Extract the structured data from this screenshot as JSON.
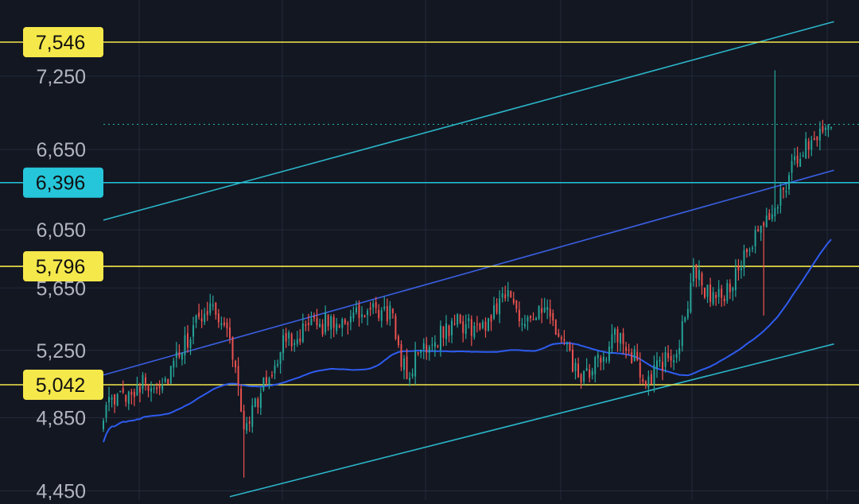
{
  "chart_data": {
    "type": "candlestick",
    "title": "",
    "xlabel": "",
    "ylabel": "",
    "ylim": [
      4450,
      7750
    ],
    "y_scale": "log",
    "grid": true,
    "y_ticks": [
      "4,450",
      "4,850",
      "5,250",
      "5,650",
      "6,050",
      "6,650",
      "7,250"
    ],
    "y_tick_values": [
      4450,
      4850,
      5250,
      5650,
      6050,
      6650,
      7250
    ],
    "price_levels": [
      {
        "label": "7,546",
        "value": 7546,
        "color": "#f5e84a",
        "style": "yellow-label"
      },
      {
        "label": "6,396",
        "value": 6396,
        "color": "#26c6da",
        "style": "cyan-label"
      },
      {
        "label": "5,796",
        "value": 5796,
        "color": "#f5e84a",
        "style": "yellow-label"
      },
      {
        "label": "5,042",
        "value": 5042,
        "color": "#f5e84a",
        "style": "yellow-label"
      }
    ],
    "last_price": 6850,
    "channel_lines": [
      {
        "name": "upper-channel",
        "color": "#2bb5c8",
        "from": {
          "bar": 0,
          "value": 6120
        },
        "to": {
          "bar": 260,
          "value": 7730
        }
      },
      {
        "name": "lower-channel",
        "color": "#2bb5c8",
        "from": {
          "bar": 45,
          "value": 4420
        },
        "to": {
          "bar": 260,
          "value": 5290
        }
      },
      {
        "name": "mid-trendline",
        "color": "#3a5fe0",
        "from": {
          "bar": 0,
          "value": 5100
        },
        "to": {
          "bar": 260,
          "value": 6490
        }
      }
    ],
    "moving_average": {
      "color": "#2e5cf0",
      "length": 50
    },
    "colors": {
      "up": "#26a69a",
      "down": "#ef5350",
      "background": "#131722",
      "grid": "#232a3a",
      "axis_text": "#b2b5be",
      "level_yellow": "#f5e84a",
      "level_cyan": "#26c6da"
    },
    "candles": {
      "count": 260,
      "key_closes": [
        {
          "bar": 0,
          "value": 4890
        },
        {
          "bar": 12,
          "value": 5040
        },
        {
          "bar": 22,
          "value": 5060
        },
        {
          "bar": 32,
          "value": 5380
        },
        {
          "bar": 38,
          "value": 5560
        },
        {
          "bar": 45,
          "value": 5340
        },
        {
          "bar": 50,
          "value": 4800
        },
        {
          "bar": 55,
          "value": 4960
        },
        {
          "bar": 65,
          "value": 5320
        },
        {
          "bar": 80,
          "value": 5430
        },
        {
          "bar": 95,
          "value": 5480
        },
        {
          "bar": 102,
          "value": 5490
        },
        {
          "bar": 108,
          "value": 5080
        },
        {
          "bar": 113,
          "value": 5260
        },
        {
          "bar": 125,
          "value": 5420
        },
        {
          "bar": 135,
          "value": 5380
        },
        {
          "bar": 143,
          "value": 5640
        },
        {
          "bar": 148,
          "value": 5470
        },
        {
          "bar": 158,
          "value": 5480
        },
        {
          "bar": 165,
          "value": 5240
        },
        {
          "bar": 170,
          "value": 5050
        },
        {
          "bar": 175,
          "value": 5150
        },
        {
          "bar": 182,
          "value": 5330
        },
        {
          "bar": 188,
          "value": 5230
        },
        {
          "bar": 193,
          "value": 5060
        },
        {
          "bar": 198,
          "value": 5150
        },
        {
          "bar": 205,
          "value": 5270
        },
        {
          "bar": 210,
          "value": 5780
        },
        {
          "bar": 215,
          "value": 5620
        },
        {
          "bar": 220,
          "value": 5580
        },
        {
          "bar": 225,
          "value": 5730
        },
        {
          "bar": 232,
          "value": 5980
        },
        {
          "bar": 238,
          "value": 6180
        },
        {
          "bar": 245,
          "value": 6500
        },
        {
          "bar": 252,
          "value": 6750
        },
        {
          "bar": 258,
          "value": 6880
        }
      ]
    }
  }
}
